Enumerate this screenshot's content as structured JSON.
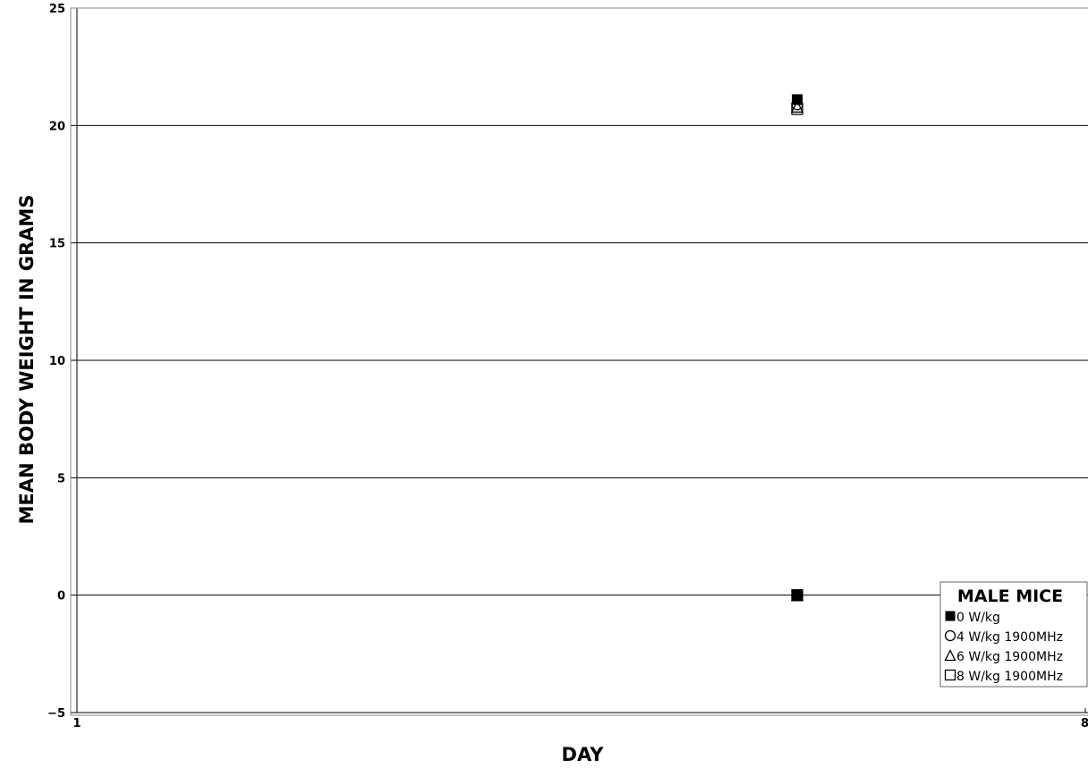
{
  "chart_data": {
    "type": "scatter",
    "xlabel": "DAY",
    "ylabel": "MEAN BODY WEIGHT IN GRAMS",
    "xlim": [
      1,
      8
    ],
    "ylim": [
      -5,
      25
    ],
    "x_ticks": [
      1,
      8
    ],
    "y_ticks": [
      -5,
      0,
      5,
      10,
      15,
      20,
      25
    ],
    "grid": "horizontal",
    "legend": {
      "title": "MALE MICE",
      "position": "bottom-right"
    },
    "series": [
      {
        "name": "0 W/kg",
        "marker": "filled-square",
        "color": "#000000",
        "points": [
          {
            "x": 6,
            "y": 0
          },
          {
            "x": 6,
            "y": 21.1
          }
        ]
      },
      {
        "name": "4 W/kg 1900MHz",
        "marker": "open-circle",
        "color": "#000000",
        "points": [
          {
            "x": 6,
            "y": 0
          },
          {
            "x": 6,
            "y": 20.9
          }
        ]
      },
      {
        "name": "6 W/kg 1900MHz",
        "marker": "open-triangle",
        "color": "#000000",
        "points": [
          {
            "x": 6,
            "y": 0
          },
          {
            "x": 6,
            "y": 20.8
          }
        ]
      },
      {
        "name": "8 W/kg 1900MHz",
        "marker": "open-square",
        "color": "#000000",
        "points": [
          {
            "x": 6,
            "y": 0
          },
          {
            "x": 6,
            "y": 20.7
          }
        ]
      }
    ]
  }
}
